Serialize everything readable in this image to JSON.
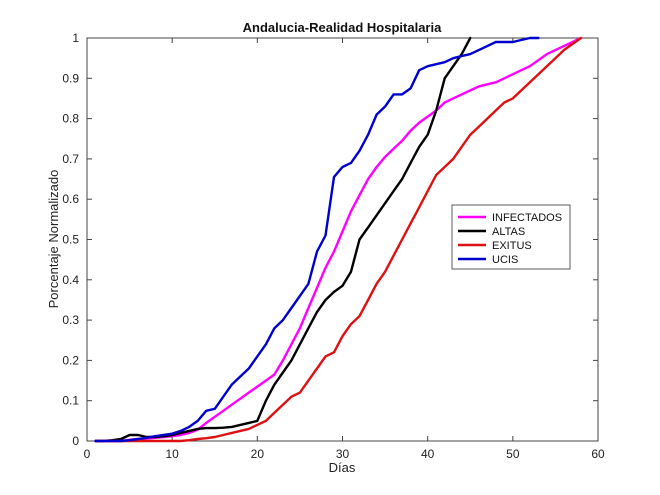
{
  "chart_data": {
    "type": "line",
    "title": "Andalucia-Realidad Hospitalaria",
    "xlabel": "Días",
    "ylabel": "Porcentaje Normalizado",
    "xlim": [
      0,
      60
    ],
    "ylim": [
      0,
      1
    ],
    "x_ticks": [
      0,
      10,
      20,
      30,
      40,
      50,
      60
    ],
    "y_ticks": [
      0,
      0.1,
      0.2,
      0.3,
      0.4,
      0.5,
      0.6,
      0.7,
      0.8,
      0.9,
      1
    ],
    "x_tick_labels": [
      "0",
      "10",
      "20",
      "30",
      "40",
      "50",
      "60"
    ],
    "y_tick_labels": [
      "0",
      "0.1",
      "0.2",
      "0.3",
      "0.4",
      "0.5",
      "0.6",
      "0.7",
      "0.8",
      "0.9",
      "1"
    ],
    "grid": false,
    "legend_position": "right-center",
    "series": [
      {
        "name": "INFECTADOS",
        "color": "#ff00ff",
        "x": [
          1,
          2,
          3,
          4,
          5,
          6,
          7,
          8,
          9,
          10,
          11,
          12,
          13,
          14,
          15,
          16,
          17,
          18,
          19,
          20,
          21,
          22,
          23,
          24,
          25,
          26,
          27,
          28,
          29,
          30,
          31,
          32,
          33,
          34,
          35,
          36,
          37,
          38,
          39,
          40,
          41,
          42,
          43,
          44,
          45,
          46,
          47,
          48,
          49,
          50,
          51,
          52,
          53,
          54,
          55,
          56,
          57,
          58
        ],
        "y": [
          0,
          0,
          0,
          0,
          0.003,
          0.005,
          0.006,
          0.008,
          0.01,
          0.012,
          0.015,
          0.02,
          0.028,
          0.045,
          0.06,
          0.075,
          0.09,
          0.105,
          0.12,
          0.135,
          0.15,
          0.165,
          0.2,
          0.24,
          0.28,
          0.33,
          0.38,
          0.43,
          0.47,
          0.52,
          0.57,
          0.61,
          0.65,
          0.68,
          0.705,
          0.725,
          0.745,
          0.77,
          0.79,
          0.805,
          0.82,
          0.84,
          0.85,
          0.86,
          0.87,
          0.88,
          0.885,
          0.89,
          0.9,
          0.91,
          0.92,
          0.93,
          0.945,
          0.96,
          0.97,
          0.98,
          0.99,
          1
        ]
      },
      {
        "name": "ALTAS",
        "color": "#000000",
        "x": [
          1,
          2,
          3,
          4,
          5,
          6,
          7,
          8,
          9,
          10,
          11,
          12,
          13,
          14,
          15,
          16,
          17,
          18,
          19,
          20,
          21,
          22,
          23,
          24,
          25,
          26,
          27,
          28,
          29,
          30,
          31,
          32,
          33,
          34,
          35,
          36,
          37,
          38,
          39,
          40,
          41,
          42,
          43,
          44,
          45
        ],
        "y": [
          0,
          0,
          0.002,
          0.005,
          0.015,
          0.015,
          0.01,
          0.01,
          0.012,
          0.015,
          0.02,
          0.025,
          0.03,
          0.032,
          0.032,
          0.033,
          0.035,
          0.04,
          0.045,
          0.05,
          0.1,
          0.14,
          0.17,
          0.2,
          0.24,
          0.28,
          0.32,
          0.35,
          0.37,
          0.385,
          0.42,
          0.5,
          0.53,
          0.56,
          0.59,
          0.62,
          0.65,
          0.69,
          0.73,
          0.76,
          0.82,
          0.9,
          0.93,
          0.96,
          1
        ]
      },
      {
        "name": "EXITUS",
        "color": "#dd1111",
        "x": [
          1,
          2,
          3,
          4,
          5,
          6,
          7,
          8,
          9,
          10,
          11,
          12,
          13,
          14,
          15,
          16,
          17,
          18,
          19,
          20,
          21,
          22,
          23,
          24,
          25,
          26,
          27,
          28,
          29,
          30,
          31,
          32,
          33,
          34,
          35,
          36,
          37,
          38,
          39,
          40,
          41,
          42,
          43,
          44,
          45,
          46,
          47,
          48,
          49,
          50,
          51,
          52,
          53,
          54,
          55,
          56,
          57,
          58
        ],
        "y": [
          0,
          0,
          0,
          0,
          0,
          0,
          0,
          0,
          0,
          0,
          0,
          0.002,
          0.005,
          0.007,
          0.01,
          0.015,
          0.02,
          0.025,
          0.03,
          0.04,
          0.05,
          0.07,
          0.09,
          0.11,
          0.12,
          0.15,
          0.18,
          0.21,
          0.22,
          0.26,
          0.29,
          0.31,
          0.35,
          0.39,
          0.42,
          0.46,
          0.5,
          0.54,
          0.58,
          0.62,
          0.66,
          0.68,
          0.7,
          0.73,
          0.76,
          0.78,
          0.8,
          0.82,
          0.84,
          0.85,
          0.87,
          0.89,
          0.91,
          0.93,
          0.95,
          0.97,
          0.985,
          1
        ]
      },
      {
        "name": "UCIS",
        "color": "#0000cc",
        "x": [
          1,
          2,
          3,
          4,
          5,
          6,
          7,
          8,
          9,
          10,
          11,
          12,
          13,
          14,
          15,
          16,
          17,
          18,
          19,
          20,
          21,
          22,
          23,
          24,
          25,
          26,
          27,
          28,
          29,
          30,
          31,
          32,
          33,
          34,
          35,
          36,
          37,
          38,
          39,
          40,
          41,
          42,
          43,
          44,
          45,
          46,
          47,
          48,
          49,
          50,
          51,
          52,
          53
        ],
        "y": [
          0,
          0,
          0,
          0,
          0.002,
          0.005,
          0.008,
          0.012,
          0.015,
          0.018,
          0.025,
          0.035,
          0.05,
          0.075,
          0.08,
          0.11,
          0.14,
          0.16,
          0.18,
          0.21,
          0.24,
          0.28,
          0.3,
          0.33,
          0.36,
          0.39,
          0.47,
          0.51,
          0.655,
          0.68,
          0.69,
          0.72,
          0.76,
          0.81,
          0.83,
          0.86,
          0.86,
          0.875,
          0.92,
          0.93,
          0.935,
          0.94,
          0.95,
          0.955,
          0.96,
          0.97,
          0.98,
          0.99,
          0.99,
          0.99,
          0.995,
          1,
          1
        ]
      }
    ]
  }
}
